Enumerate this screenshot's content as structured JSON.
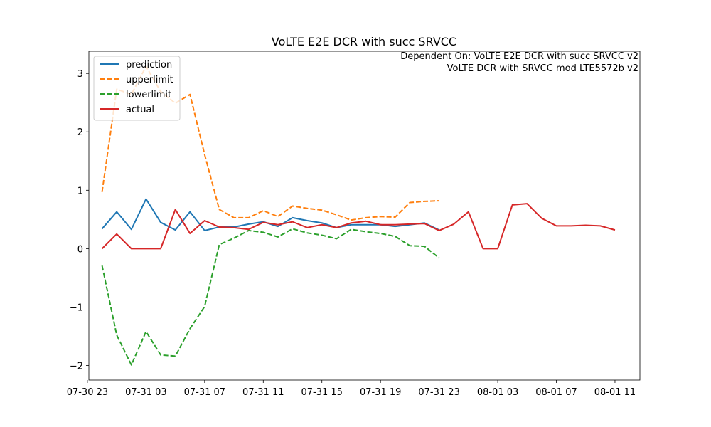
{
  "chart_data": {
    "type": "line",
    "title": "VoLTE E2E DCR with succ SRVCC",
    "annotation": [
      "Dependent On: VoLTE E2E DCR with succ SRVCC v2",
      "VoLTE DCR with SRVCC mod LTE5572b v2"
    ],
    "xlabel": "",
    "ylabel": "",
    "x_start": "07-31 00:00",
    "x_step_hours": 1,
    "xlim": [
      -0.9,
      36.7
    ],
    "ylim": [
      -2.25,
      3.38
    ],
    "xticks": [
      {
        "pos": -1,
        "label": "07-30 23"
      },
      {
        "pos": 3,
        "label": "07-31 03"
      },
      {
        "pos": 7,
        "label": "07-31 07"
      },
      {
        "pos": 11,
        "label": "07-31 11"
      },
      {
        "pos": 15,
        "label": "07-31 15"
      },
      {
        "pos": 19,
        "label": "07-31 19"
      },
      {
        "pos": 23,
        "label": "07-31 23"
      },
      {
        "pos": 27,
        "label": "08-01 03"
      },
      {
        "pos": 31,
        "label": "08-01 07"
      },
      {
        "pos": 35,
        "label": "08-01 11"
      }
    ],
    "yticks": [
      {
        "value": -2,
        "label": "−2"
      },
      {
        "value": -1,
        "label": "−1"
      },
      {
        "value": 0,
        "label": "0"
      },
      {
        "value": 1,
        "label": "1"
      },
      {
        "value": 2,
        "label": "2"
      },
      {
        "value": 3,
        "label": "3"
      }
    ],
    "grid": false,
    "legend_position": "top-left",
    "series": [
      {
        "name": "prediction",
        "color": "#1f77b4",
        "dashed": false,
        "x_start": 0,
        "values": [
          0.34,
          0.63,
          0.33,
          0.85,
          0.45,
          0.32,
          0.63,
          0.31,
          0.37,
          0.37,
          0.42,
          0.46,
          0.38,
          0.53,
          0.48,
          0.44,
          0.36,
          0.41,
          0.41,
          0.41,
          0.38,
          0.41,
          0.44,
          0.32
        ]
      },
      {
        "name": "upperlimit",
        "color": "#ff7f0e",
        "dashed": true,
        "x_start": 0,
        "values": [
          0.97,
          2.73,
          2.64,
          3.12,
          2.69,
          2.49,
          2.64,
          1.61,
          0.67,
          0.53,
          0.53,
          0.65,
          0.55,
          0.73,
          0.69,
          0.66,
          0.58,
          0.49,
          0.53,
          0.55,
          0.54,
          0.79,
          0.81,
          0.82
        ]
      },
      {
        "name": "lowerlimit",
        "color": "#2ca02c",
        "dashed": true,
        "x_start": 0,
        "values": [
          -0.29,
          -1.48,
          -1.99,
          -1.42,
          -1.82,
          -1.84,
          -1.37,
          -0.99,
          0.07,
          0.18,
          0.31,
          0.28,
          0.2,
          0.34,
          0.27,
          0.23,
          0.17,
          0.33,
          0.29,
          0.26,
          0.21,
          0.05,
          0.04,
          -0.16
        ]
      },
      {
        "name": "actual",
        "color": "#d62728",
        "dashed": false,
        "x_start": 0,
        "values": [
          0.0,
          0.25,
          0.0,
          0.0,
          0.0,
          0.67,
          0.26,
          0.48,
          0.37,
          0.36,
          0.33,
          0.45,
          0.41,
          0.46,
          0.36,
          0.41,
          0.36,
          0.44,
          0.47,
          0.41,
          0.41,
          0.42,
          0.43,
          0.31,
          0.42,
          0.63,
          0.0,
          0.0,
          0.75,
          0.77,
          0.52,
          0.39,
          0.39,
          0.4,
          0.39,
          0.32
        ]
      }
    ]
  }
}
